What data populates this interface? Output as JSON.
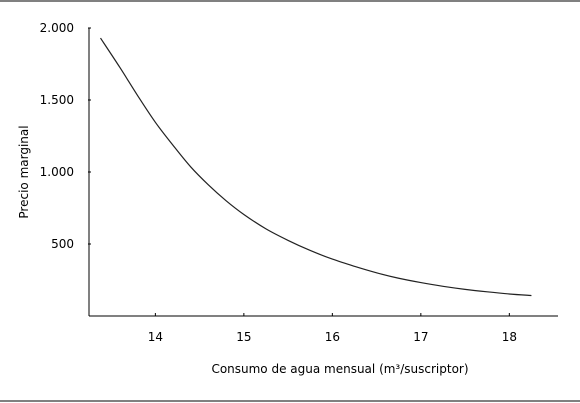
{
  "chart_data": {
    "type": "line",
    "title": "",
    "xlabel": "Consumo de agua mensual (m³/suscriptor)",
    "ylabel": "Precio marginal",
    "xlim": [
      13.25,
      18.55
    ],
    "ylim": [
      0,
      2000
    ],
    "x_ticks": [
      14,
      15,
      16,
      17,
      18
    ],
    "x_tick_labels": [
      "14",
      "15",
      "16",
      "17",
      "18"
    ],
    "y_ticks": [
      500,
      1000,
      1500,
      2000
    ],
    "y_tick_labels": [
      "500",
      "1.000",
      "1.500",
      "2.000"
    ],
    "grid": false,
    "legend": "none",
    "series": [
      {
        "x": [
          13.38,
          13.6,
          13.8,
          14.0,
          14.2,
          14.4,
          14.6,
          14.8,
          15.0,
          15.25,
          15.5,
          15.75,
          16.0,
          16.25,
          16.5,
          16.75,
          17.0,
          17.25,
          17.5,
          17.75,
          18.0,
          18.25
        ],
        "y": [
          1930,
          1725,
          1530,
          1345,
          1185,
          1035,
          910,
          800,
          705,
          605,
          525,
          455,
          395,
          345,
          300,
          262,
          232,
          206,
          185,
          168,
          153,
          142
        ]
      }
    ]
  }
}
